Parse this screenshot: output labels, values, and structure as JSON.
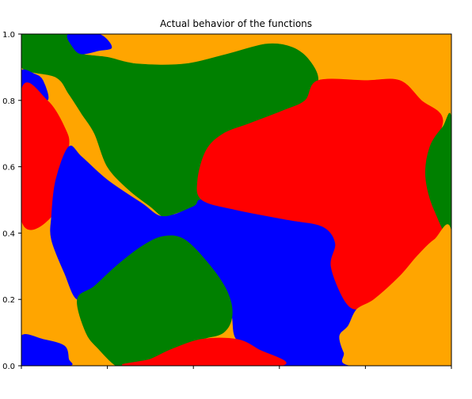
{
  "chart_data": {
    "type": "heatmap",
    "title": "Actual behavior of the functions",
    "xlabel": "",
    "ylabel": "",
    "xlim": [
      0,
      1
    ],
    "ylim": [
      0,
      1
    ],
    "yticks": [
      "0.0",
      "0.2",
      "0.4",
      "0.6",
      "0.8",
      "1.0"
    ],
    "xticks": [
      "",
      "",
      "",
      "",
      "",
      ""
    ],
    "grid": false,
    "legend": "none",
    "colors": {
      "orange": "#FFA500",
      "green": "#008000",
      "blue": "#0000FF",
      "red": "#FF0000"
    },
    "regions": [
      {
        "class": "orange",
        "points": []
      },
      {
        "class": "green",
        "points": [
          [
            0,
            0.9
          ],
          [
            0.08,
            0.87
          ],
          [
            0.11,
            0.82
          ],
          [
            0.14,
            0.76
          ],
          [
            0.17,
            0.7
          ],
          [
            0.2,
            0.6
          ],
          [
            0.25,
            0.53
          ],
          [
            0.3,
            0.48
          ],
          [
            0.33,
            0.45
          ],
          [
            0.36,
            0.46
          ],
          [
            0.4,
            0.48
          ],
          [
            0.42,
            0.5
          ],
          [
            0.41,
            0.56
          ],
          [
            0.43,
            0.65
          ],
          [
            0.47,
            0.7
          ],
          [
            0.53,
            0.73
          ],
          [
            0.61,
            0.77
          ],
          [
            0.66,
            0.8
          ],
          [
            0.69,
            0.86
          ],
          [
            0.67,
            0.92
          ],
          [
            0.63,
            0.96
          ],
          [
            0.57,
            0.97
          ],
          [
            0.48,
            0.94
          ],
          [
            0.38,
            0.91
          ],
          [
            0.27,
            0.91
          ],
          [
            0.2,
            0.93
          ],
          [
            0.14,
            0.94
          ],
          [
            0.12,
            0.96
          ],
          [
            0.11,
            1
          ],
          [
            0,
            1
          ]
        ]
      },
      {
        "class": "blue",
        "points": [
          [
            0.11,
            1
          ],
          [
            0.18,
            1
          ],
          [
            0.21,
            0.96
          ],
          [
            0.18,
            0.95
          ],
          [
            0.14,
            0.94
          ],
          [
            0.12,
            0.96
          ]
        ]
      },
      {
        "class": "blue",
        "points": [
          [
            0,
            0.89
          ],
          [
            0.03,
            0.88
          ],
          [
            0.05,
            0.86
          ],
          [
            0.06,
            0.8
          ],
          [
            0,
            0.83
          ]
        ]
      },
      {
        "class": "red",
        "points": [
          [
            0,
            0.83
          ],
          [
            0.06,
            0.8
          ],
          [
            0.1,
            0.72
          ],
          [
            0.11,
            0.66
          ],
          [
            0.08,
            0.56
          ],
          [
            0.07,
            0.45
          ],
          [
            0,
            0.44
          ]
        ]
      },
      {
        "class": "blue",
        "points": [
          [
            0.07,
            0.45
          ],
          [
            0.08,
            0.56
          ],
          [
            0.11,
            0.66
          ],
          [
            0.14,
            0.63
          ],
          [
            0.2,
            0.56
          ],
          [
            0.28,
            0.49
          ],
          [
            0.33,
            0.45
          ],
          [
            0.4,
            0.48
          ],
          [
            0.42,
            0.5
          ],
          [
            0.5,
            0.47
          ],
          [
            0.62,
            0.44
          ],
          [
            0.7,
            0.42
          ],
          [
            0.73,
            0.37
          ],
          [
            0.72,
            0.3
          ],
          [
            0.75,
            0.2
          ],
          [
            0.78,
            0.17
          ],
          [
            0.76,
            0.12
          ],
          [
            0.74,
            0.09
          ],
          [
            0.75,
            0.04
          ],
          [
            0.77,
            0
          ],
          [
            0.6,
            0
          ],
          [
            0.55,
            0.05
          ],
          [
            0.5,
            0.08
          ],
          [
            0.49,
            0.15
          ],
          [
            0.48,
            0.22
          ],
          [
            0.44,
            0.3
          ],
          [
            0.38,
            0.38
          ],
          [
            0.33,
            0.39
          ],
          [
            0.28,
            0.36
          ],
          [
            0.22,
            0.3
          ],
          [
            0.17,
            0.24
          ],
          [
            0.13,
            0.2
          ],
          [
            0.1,
            0.28
          ],
          [
            0.07,
            0.38
          ]
        ]
      },
      {
        "class": "red",
        "points": [
          [
            0.42,
            0.5
          ],
          [
            0.41,
            0.56
          ],
          [
            0.43,
            0.65
          ],
          [
            0.47,
            0.7
          ],
          [
            0.53,
            0.73
          ],
          [
            0.61,
            0.77
          ],
          [
            0.66,
            0.8
          ],
          [
            0.69,
            0.86
          ],
          [
            0.8,
            0.86
          ],
          [
            0.88,
            0.86
          ],
          [
            0.93,
            0.8
          ],
          [
            0.98,
            0.74
          ],
          [
            0.94,
            0.6
          ],
          [
            0.97,
            0.47
          ],
          [
            1,
            0.4
          ],
          [
            0.96,
            0.38
          ],
          [
            0.92,
            0.33
          ],
          [
            0.88,
            0.27
          ],
          [
            0.82,
            0.2
          ],
          [
            0.78,
            0.17
          ],
          [
            0.75,
            0.2
          ],
          [
            0.72,
            0.3
          ],
          [
            0.73,
            0.37
          ],
          [
            0.7,
            0.42
          ],
          [
            0.62,
            0.44
          ],
          [
            0.5,
            0.47
          ]
        ]
      },
      {
        "class": "green",
        "points": [
          [
            1,
            0.74
          ],
          [
            0.98,
            0.72
          ],
          [
            0.95,
            0.66
          ],
          [
            0.94,
            0.57
          ],
          [
            0.96,
            0.47
          ],
          [
            1,
            0.4
          ]
        ]
      },
      {
        "class": "green",
        "points": [
          [
            0.13,
            0.2
          ],
          [
            0.17,
            0.24
          ],
          [
            0.22,
            0.3
          ],
          [
            0.28,
            0.36
          ],
          [
            0.33,
            0.39
          ],
          [
            0.38,
            0.38
          ],
          [
            0.44,
            0.3
          ],
          [
            0.48,
            0.22
          ],
          [
            0.49,
            0.15
          ],
          [
            0.47,
            0.1
          ],
          [
            0.42,
            0.08
          ],
          [
            0.35,
            0.05
          ],
          [
            0.3,
            0.02
          ],
          [
            0.25,
            0
          ],
          [
            0.22,
            0
          ],
          [
            0.18,
            0.05
          ],
          [
            0.15,
            0.1
          ]
        ]
      },
      {
        "class": "red",
        "points": [
          [
            0.25,
            0
          ],
          [
            0.3,
            0.02
          ],
          [
            0.35,
            0.05
          ],
          [
            0.42,
            0.08
          ],
          [
            0.5,
            0.08
          ],
          [
            0.55,
            0.05
          ],
          [
            0.6,
            0
          ]
        ]
      },
      {
        "class": "orange",
        "points": [
          [
            0.78,
            0.17
          ],
          [
            0.82,
            0.2
          ],
          [
            0.88,
            0.27
          ],
          [
            0.92,
            0.33
          ],
          [
            0.96,
            0.38
          ],
          [
            1,
            0.4
          ],
          [
            1,
            0
          ],
          [
            0.77,
            0
          ],
          [
            0.75,
            0.04
          ],
          [
            0.74,
            0.09
          ],
          [
            0.76,
            0.12
          ]
        ]
      },
      {
        "class": "blue",
        "points": [
          [
            0,
            0.09
          ],
          [
            0.05,
            0.08
          ],
          [
            0.1,
            0.06
          ],
          [
            0.11,
            0.02
          ],
          [
            0.11,
            0
          ],
          [
            0,
            0
          ]
        ]
      }
    ]
  }
}
